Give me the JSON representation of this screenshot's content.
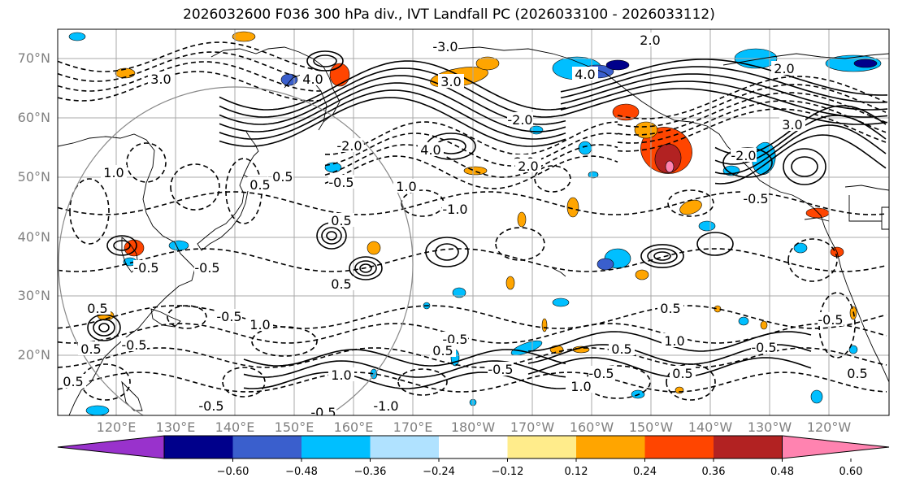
{
  "title": "2026032600 F036 300 hPa div., IVT Landfall PC (2026033100 - 2026033112)",
  "latitude_labels": [
    "70°N",
    "60°N",
    "50°N",
    "40°N",
    "30°N",
    "20°N"
  ],
  "longitude_labels": [
    "120°E",
    "130°E",
    "140°E",
    "150°E",
    "160°E",
    "170°E",
    "180°W",
    "170°W",
    "160°W",
    "150°W",
    "140°W",
    "130°W",
    "120°W"
  ],
  "contour_labels": [
    "-0.5",
    "-1.0",
    "-2.0",
    "-3.0",
    "0.5",
    "1.0",
    "2.0",
    "3.0",
    "4.0"
  ],
  "colorbar": {
    "colors": [
      "#9932cc",
      "#00008b",
      "#3a5fcd",
      "#00bfff",
      "#b0e2ff",
      "#ffffff",
      "#ffec8b",
      "#ffa500",
      "#ff4500",
      "#b22222",
      "#ff83b0"
    ],
    "tick_labels": [
      "−0.60",
      "−0.48",
      "−0.36",
      "−0.24",
      "−0.12",
      "0.12",
      "0.24",
      "0.36",
      "0.48",
      "0.60"
    ],
    "extend": "both"
  },
  "colors": {
    "grid": "#a9a9a9",
    "coast": "#000000",
    "axis_labels": "#808080"
  }
}
